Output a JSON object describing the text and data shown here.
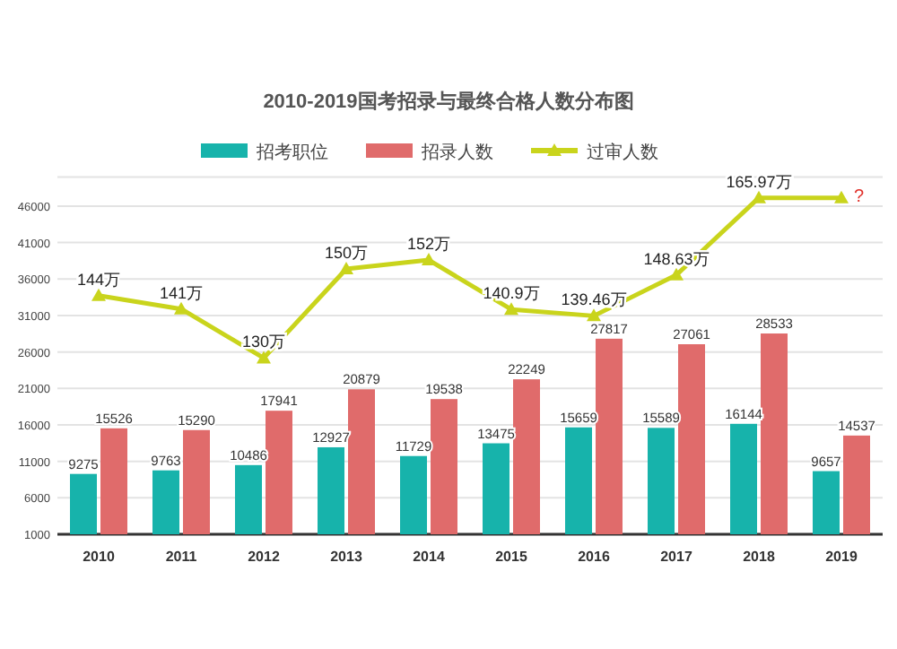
{
  "chart_data": {
    "type": "bar",
    "title": "2010-2019国考招录与最终合格人数分布图",
    "categories": [
      "2010",
      "2011",
      "2012",
      "2013",
      "2014",
      "2015",
      "2016",
      "2017",
      "2018",
      "2019"
    ],
    "series": [
      {
        "name": "招考职位",
        "color": "#17b3ab",
        "values": [
          9275,
          9763,
          10486,
          12927,
          11729,
          13475,
          15659,
          15589,
          16144,
          9657
        ]
      },
      {
        "name": "招录人数",
        "color": "#e06b6b",
        "values": [
          15526,
          15290,
          17941,
          20879,
          19538,
          22249,
          27817,
          27061,
          28533,
          14537
        ]
      },
      {
        "name": "过审人数",
        "type": "line",
        "axis": "y2",
        "color": "#c9d41c",
        "marker": "triangle",
        "values": [
          144,
          141,
          130,
          150,
          152,
          140.9,
          139.46,
          148.63,
          165.97,
          165.97
        ],
        "value_labels": [
          "144万",
          "141万",
          "130万",
          "150万",
          "152万",
          "140.9万",
          "139.46万",
          "148.63万",
          "165.97万",
          "?"
        ]
      }
    ],
    "data_labels": true,
    "ylim": [
      1000,
      50000
    ],
    "yticks": [
      1000,
      6000,
      11000,
      16000,
      21000,
      26000,
      31000,
      36000,
      41000,
      46000
    ],
    "grid": "y",
    "legend": "top"
  }
}
